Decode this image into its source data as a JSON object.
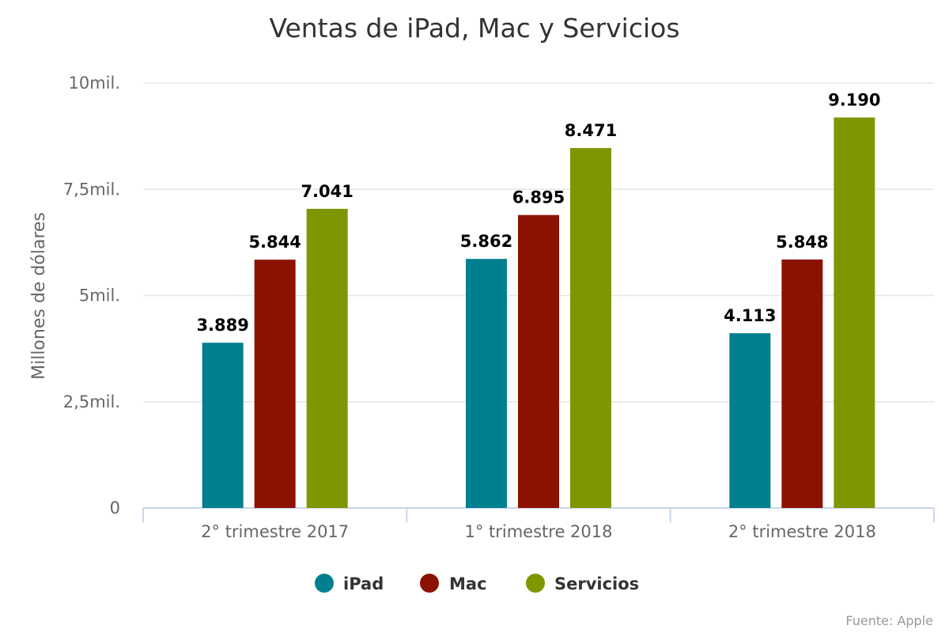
{
  "chart_data": {
    "type": "bar",
    "title": "Ventas de iPad, Mac y Servicios",
    "xlabel": "",
    "ylabel": "Millones de dólares",
    "categories": [
      "2° trimestre 2017",
      "1° trimestre 2018",
      "2° trimestre 2018"
    ],
    "series": [
      {
        "name": "iPad",
        "color": "#00808f",
        "values": [
          3889,
          5862,
          4113
        ],
        "labels": [
          "3.889",
          "5.862",
          "4.113"
        ]
      },
      {
        "name": "Mac",
        "color": "#8b1200",
        "values": [
          5844,
          6895,
          5848
        ],
        "labels": [
          "5.844",
          "6.895",
          "5.848"
        ]
      },
      {
        "name": "Servicios",
        "color": "#7f9600",
        "values": [
          7041,
          8471,
          9190
        ],
        "labels": [
          "7.041",
          "8.471",
          "9.190"
        ]
      }
    ],
    "ylim": [
      0,
      10000
    ],
    "yticks": [
      0,
      2500,
      5000,
      7500,
      10000
    ],
    "ytick_labels": [
      "0",
      "2,5mil.",
      "5mil.",
      "7,5mil.",
      "10mil."
    ],
    "grid": true,
    "legend_position": "bottom-center",
    "source": "Fuente: Apple"
  }
}
